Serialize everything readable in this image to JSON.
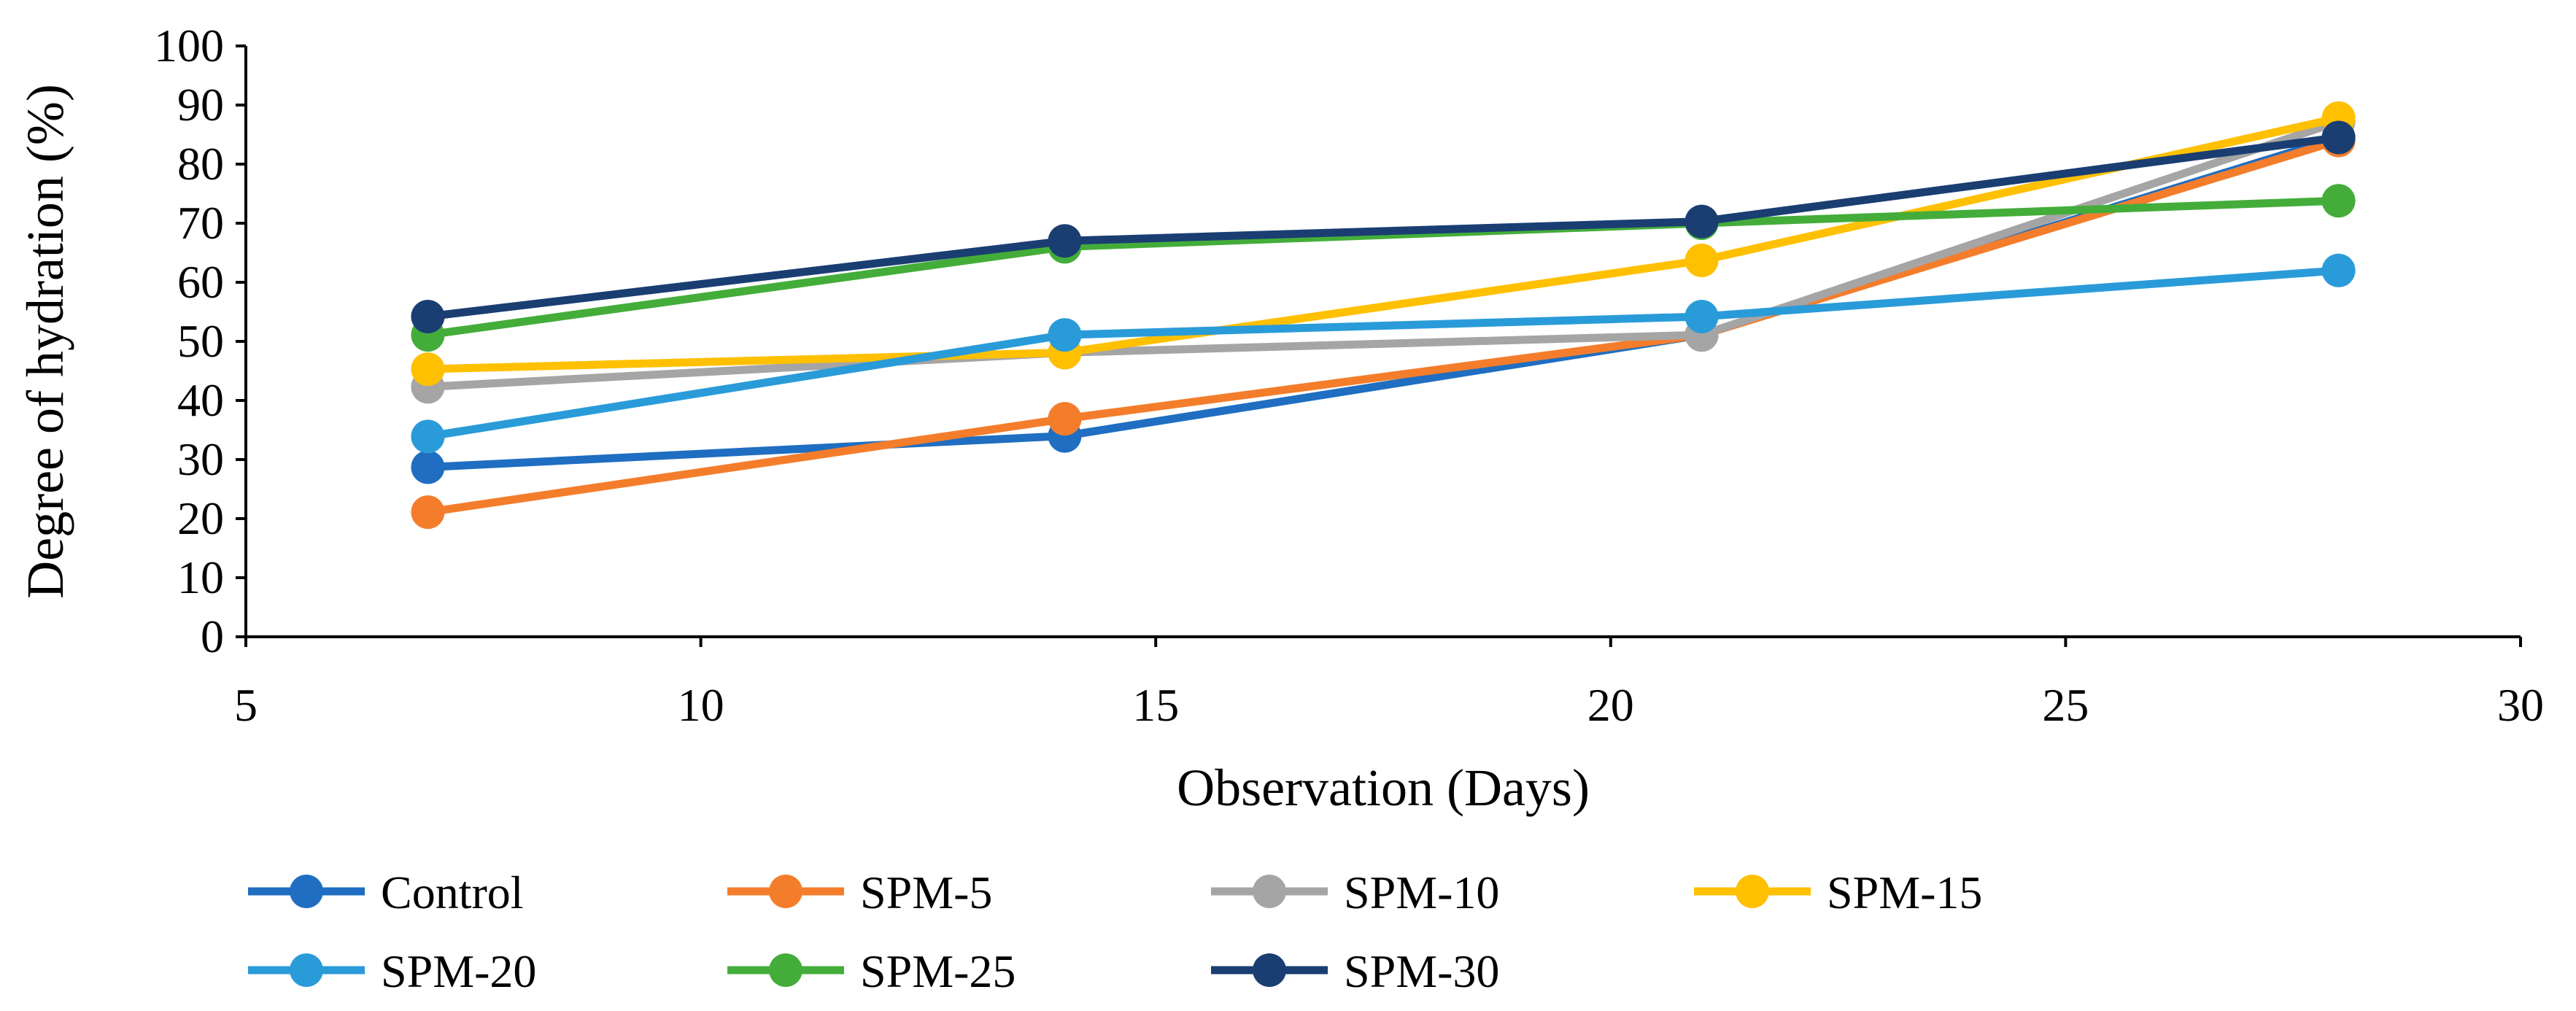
{
  "chart_data": {
    "type": "line",
    "title": "",
    "xlabel": "Observation (Days)",
    "ylabel": "Degree of hydration (%)",
    "xlim": [
      5,
      30
    ],
    "ylim": [
      0,
      100
    ],
    "xticks": [
      5,
      10,
      15,
      20,
      25,
      30
    ],
    "yticks": [
      0,
      10,
      20,
      30,
      40,
      50,
      60,
      70,
      80,
      90,
      100
    ],
    "grid": false,
    "legend_position": "bottom",
    "x": [
      7,
      14,
      21,
      28
    ],
    "series": [
      {
        "name": "Control",
        "color": "#1F6EC1",
        "values": [
          28.7,
          34.0,
          51.1,
          84.5
        ]
      },
      {
        "name": "SPM-5",
        "color": "#F47D2C",
        "values": [
          21.1,
          36.9,
          51.1,
          84.0
        ]
      },
      {
        "name": "SPM-10",
        "color": "#A5A5A5",
        "values": [
          42.3,
          48.1,
          51.1,
          87.2
        ]
      },
      {
        "name": "SPM-15",
        "color": "#FFC000",
        "values": [
          45.3,
          48.1,
          63.7,
          87.8
        ]
      },
      {
        "name": "SPM-20",
        "color": "#2A9BD9",
        "values": [
          33.9,
          51.1,
          54.2,
          62.0
        ]
      },
      {
        "name": "SPM-25",
        "color": "#44AD3A",
        "values": [
          51.1,
          66.0,
          70.0,
          73.8
        ]
      },
      {
        "name": "SPM-30",
        "color": "#1A3E72",
        "values": [
          54.2,
          67.0,
          70.3,
          84.5
        ]
      }
    ]
  }
}
